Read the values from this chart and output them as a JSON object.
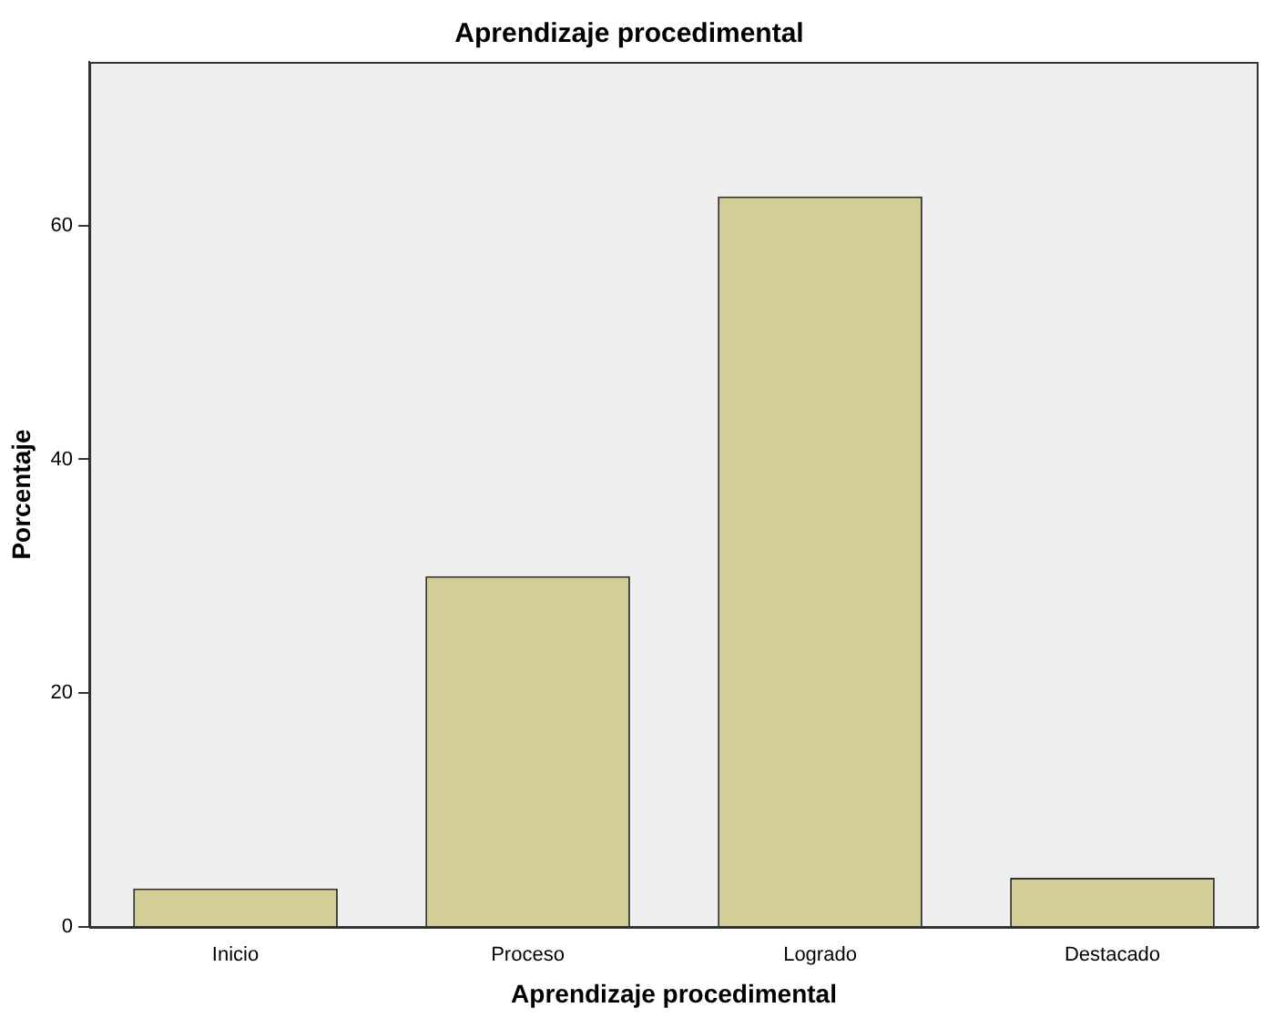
{
  "chart_data": {
    "type": "bar",
    "title": "Aprendizaje procedimental",
    "xlabel": "Aprendizaje procedimental",
    "ylabel": "Porcentaje",
    "categories": [
      "Inicio",
      "Proceso",
      "Logrado",
      "Destacado"
    ],
    "values": [
      3.3,
      30,
      62.5,
      4.2
    ],
    "color": "#d3ce97",
    "ylim": [
      0,
      74
    ],
    "yticks": [
      0,
      20,
      40,
      60
    ],
    "grid": false,
    "legend": false
  }
}
